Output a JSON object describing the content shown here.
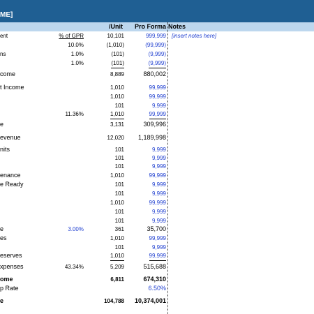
{
  "title": "ME]",
  "headers": {
    "unit": "/Unit",
    "pro_forma": "Pro Forma",
    "notes": "Notes"
  },
  "rows": [
    {
      "label": "ent",
      "pct": "% of GPR",
      "unit": "10,101",
      "pf": "999,999",
      "note": "[insert notes here]"
    },
    {
      "label": "",
      "pct": "10.0%",
      "unit": "(1,010)",
      "pf": "(99,999)"
    },
    {
      "label": "ns",
      "pct": "1.0%",
      "unit": "(101)",
      "pf": "(9,999)"
    },
    {
      "label": "",
      "pct": "1.0%",
      "unit": "(101)",
      "pf": "(9,999)"
    },
    {
      "label": "come",
      "pct": "",
      "unit": "8,889",
      "pf": "880,002"
    },
    {
      "label": "t Income",
      "pct": "",
      "unit": "1,010",
      "pf": "99,999"
    },
    {
      "label": "",
      "pct": "",
      "unit": "1,010",
      "pf": "99,999"
    },
    {
      "label": "",
      "pct": "",
      "unit": "101",
      "pf": "9,999"
    },
    {
      "label": "",
      "pct": "11.36%",
      "unit": "1,010",
      "pf": "99,999"
    },
    {
      "label": "e",
      "pct": "",
      "unit": "3,131",
      "pf": "309,996"
    },
    {
      "label": "evenue",
      "pct": "",
      "unit": "12,020",
      "pf": "1,189,998"
    },
    {
      "label": "nits",
      "pct": "",
      "unit": "101",
      "pf": "9,999"
    },
    {
      "label": "",
      "pct": "",
      "unit": "101",
      "pf": "9,999"
    },
    {
      "label": "",
      "pct": "",
      "unit": "101",
      "pf": "9,999"
    },
    {
      "label": "enance",
      "pct": "",
      "unit": "1,010",
      "pf": "99,999"
    },
    {
      "label": "e Ready",
      "pct": "",
      "unit": "101",
      "pf": "9,999"
    },
    {
      "label": "",
      "pct": "",
      "unit": "101",
      "pf": "9,999"
    },
    {
      "label": "",
      "pct": "",
      "unit": "1,010",
      "pf": "99,999"
    },
    {
      "label": "",
      "pct": "",
      "unit": "101",
      "pf": "9,999"
    },
    {
      "label": "",
      "pct": "",
      "unit": "101",
      "pf": "9,999"
    },
    {
      "label": "e",
      "pct": "3.00%",
      "unit": "361",
      "pf": "35,700"
    },
    {
      "label": "es",
      "pct": "",
      "unit": "1,010",
      "pf": "99,999"
    },
    {
      "label": "",
      "pct": "",
      "unit": "101",
      "pf": "9,999"
    },
    {
      "label": "eserves",
      "pct": "",
      "unit": "1,010",
      "pf": "99,999"
    },
    {
      "label": "xpenses",
      "pct": "43.34%",
      "unit": "5,209",
      "pf": "515,688"
    },
    {
      "label": "ome",
      "pct": "",
      "unit": "6,811",
      "pf": "674,310"
    },
    {
      "label": "p Rate",
      "pct": "",
      "unit": "",
      "pf": "6.50%"
    },
    {
      "label": "e",
      "pct": "",
      "unit": "104,788",
      "pf": "10,374,001"
    }
  ],
  "colors": {
    "title_bar": "#1f5f93",
    "header_band": "#bdd7ee",
    "input_blue": "#1f3fd0"
  }
}
